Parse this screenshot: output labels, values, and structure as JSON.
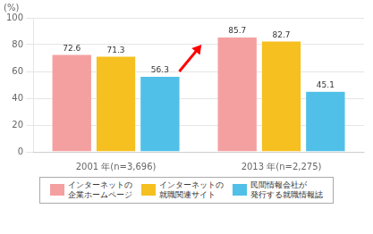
{
  "chart_data": {
    "type": "bar",
    "categories": [
      "2001 年(n=3,696)",
      "2013 年(n=2,275)"
    ],
    "series": [
      {
        "name": "インターネットの\n企業ホームページ",
        "color": "#f5a0a0",
        "values": [
          72.6,
          85.7
        ]
      },
      {
        "name": "インターネットの\n就職関連サイト",
        "color": "#f5c020",
        "values": [
          71.3,
          82.7
        ]
      },
      {
        "name": "民間情報会社が\n発行する就職情報誌",
        "color": "#50c0e8",
        "values": [
          56.3,
          45.1
        ]
      }
    ],
    "y_label": "(%)",
    "ylim": [
      0,
      100
    ],
    "yticks": [
      0,
      20,
      40,
      60,
      80,
      100
    ],
    "grid": true,
    "legend": "bottom",
    "data_labels": true
  }
}
